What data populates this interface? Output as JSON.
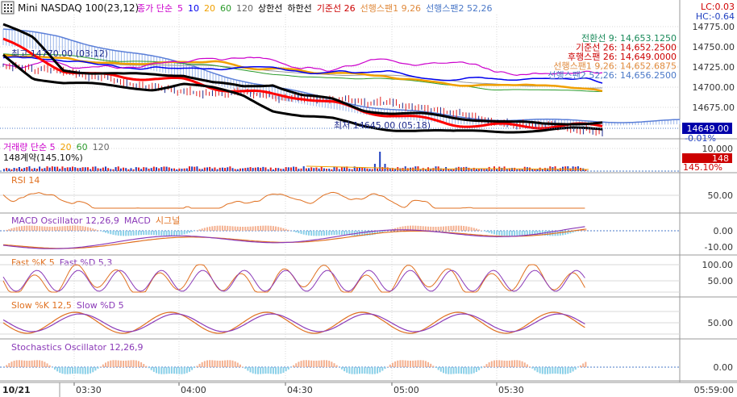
{
  "title": "Mini NASDAQ 100(23,12)",
  "date_label": "10/21",
  "top_right": {
    "lc": "LC:0.03",
    "hc": "HC:-0.64"
  },
  "colors": {
    "bg": "#ffffff",
    "grid": "#d8d8d8",
    "axis_text": "#333333",
    "price_line": "#1e2a8c",
    "cloud_fill": "#9ab6ea",
    "cloud_line": "#5b7fd8",
    "tenkan": "#ff0000",
    "kijun": "#000000",
    "chikou": "#8b0000",
    "ma5": "#cc00cc",
    "ma10": "#0000ee",
    "ma20": "#f0a000",
    "ma60": "#2a9a2a",
    "ma120": "#999999",
    "macd": "#8b3ab8",
    "signal": "#e07020",
    "osc_pos": "#f4b090",
    "osc_neg": "#8ad0e8",
    "fastk": "#e07020",
    "fastd": "#8b3ab8",
    "vol_up": "#e02020",
    "vol_dn": "#2040c0",
    "marker_bg": "#0000aa",
    "vol_marker_bg": "#cc0000"
  },
  "legend_price": [
    {
      "text": "종가 단순",
      "color": "#cc00cc"
    },
    {
      "text": "5",
      "color": "#cc00cc"
    },
    {
      "text": "10",
      "color": "#0000ee"
    },
    {
      "text": "20",
      "color": "#f0a000"
    },
    {
      "text": "60",
      "color": "#2a9a2a"
    },
    {
      "text": "120",
      "color": "#666666"
    },
    {
      "text": "상한선",
      "color": "#000000"
    },
    {
      "text": "하한선",
      "color": "#000000"
    },
    {
      "text": "기준선 26",
      "color": "#cc0000"
    },
    {
      "text": "선행스팬1 9,26",
      "color": "#e08a3c"
    },
    {
      "text": "선행스팬2 52,26",
      "color": "#4a78c8"
    }
  ],
  "ichimoku_labels": [
    {
      "text": "전환선 9: 14,653.1250",
      "color": "#1a8a5a"
    },
    {
      "text": "기준선 26: 14,652.2500",
      "color": "#cc0000"
    },
    {
      "text": "후행스팬 26: 14,649.0000",
      "color": "#cc0000"
    },
    {
      "text": "선행스팬1 9,26: 14,652.6875",
      "color": "#e08a3c"
    },
    {
      "text": "선행스팬2 52,26: 14,656.2500",
      "color": "#4a78c8"
    }
  ],
  "annotations": {
    "max_label": "최고 14770.00 (03:12)",
    "min_label": "최저 14645.00 (05:18)"
  },
  "panels": {
    "price": {
      "ticks": [
        "14775.00",
        "14750.00",
        "14725.00",
        "14700.00",
        "14675.00"
      ],
      "tick_values": [
        14775,
        14750,
        14725,
        14700,
        14675
      ],
      "range": [
        14640,
        14790
      ],
      "current": "14649.00",
      "current_value": 14649,
      "change": "-0.01%"
    },
    "volume": {
      "legend": [
        {
          "text": "거래량 단순 5",
          "color": "#cc00cc"
        },
        {
          "text": "20",
          "color": "#f0a000"
        },
        {
          "text": "60",
          "color": "#2a9a2a"
        },
        {
          "text": "120",
          "color": "#666666"
        }
      ],
      "sub": "148계약(145.10%)",
      "ticks": [
        "10,000"
      ],
      "current": "148",
      "change": "145.10%"
    },
    "rsi": {
      "legend": "RSI 14",
      "legend_color": "#e07020",
      "ticks": [
        "50.00"
      ]
    },
    "macd": {
      "legend": [
        {
          "text": "MACD Oscillator 12,26,9",
          "color": "#8b3ab8"
        },
        {
          "text": "MACD",
          "color": "#8b3ab8"
        },
        {
          "text": "시그널",
          "color": "#e07020"
        }
      ],
      "ticks": [
        "0.00",
        "-10.00"
      ]
    },
    "fast": {
      "legend": [
        {
          "text": "Fast %K 5",
          "color": "#e07020"
        },
        {
          "text": "Fast %D 5,3",
          "color": "#8b3ab8"
        }
      ],
      "ticks": [
        "100.00",
        "50.00"
      ]
    },
    "slow": {
      "legend": [
        {
          "text": "Slow %K 12,5",
          "color": "#e07020"
        },
        {
          "text": "Slow %D 5",
          "color": "#8b3ab8"
        }
      ],
      "ticks": [
        "50.00"
      ]
    },
    "stoch": {
      "legend": "Stochastics Oscillator 12,26,9",
      "legend_color": "#8b3ab8",
      "ticks": [
        "0.00"
      ]
    }
  },
  "x_axis": {
    "labels": [
      "03:30",
      "04:00",
      "04:30",
      "05:00",
      "05:30"
    ],
    "end_label": "05:59:00"
  },
  "chart_data": {
    "type": "line",
    "x_range": [
      "03:00",
      "05:59"
    ],
    "series": [
      {
        "name": "선행스팬2 52,26",
        "values": [
          14770,
          14765,
          14760,
          14752,
          14745,
          14738,
          14730,
          14722,
          14712,
          14703,
          14695,
          14688,
          14682,
          14675,
          14670,
          14666,
          14662,
          14660,
          14658,
          14657,
          14656
        ]
      },
      {
        "name": "기준선 26",
        "values": [
          14760,
          14738,
          14722,
          14715,
          14712,
          14712,
          14708,
          14700,
          14695,
          14690,
          14688,
          14680,
          14670,
          14666,
          14660,
          14655,
          14652,
          14652,
          14652,
          14652,
          14652
        ]
      },
      {
        "name": "상한선",
        "values": [
          14778,
          14760,
          14722,
          14718,
          14715,
          14716,
          14716,
          14705,
          14700,
          14704,
          14690,
          14684,
          14672,
          14668,
          14666,
          14662,
          14660,
          14656,
          14654,
          14656,
          14656
        ]
      },
      {
        "name": "하한선",
        "values": [
          14740,
          14712,
          14705,
          14703,
          14700,
          14698,
          14704,
          14698,
          14690,
          14672,
          14664,
          14660,
          14652,
          14648,
          14646,
          14644,
          14646,
          14646,
          14646,
          14648,
          14648
        ]
      }
    ],
    "price_range": [
      14645.0,
      14770.0
    ],
    "last_price": 14649.0
  }
}
